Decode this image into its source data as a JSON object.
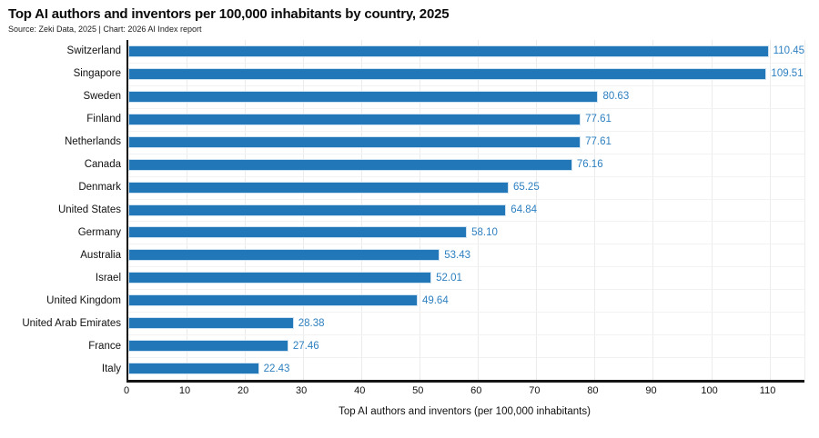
{
  "header": {
    "title": "Top AI authors and inventors per 100,000 inhabitants by country, 2025",
    "source": "Source: Zeki Data, 2025 | Chart: 2026 AI Index report"
  },
  "chart_data": {
    "type": "bar",
    "orientation": "horizontal",
    "title": "Top AI authors and inventors per 100,000 inhabitants by country, 2025",
    "subtitle": "Source: Zeki Data, 2025 | Chart: 2026 AI Index report",
    "categories": [
      "Switzerland",
      "Singapore",
      "Sweden",
      "Finland",
      "Netherlands",
      "Canada",
      "Denmark",
      "United States",
      "Germany",
      "Australia",
      "Israel",
      "United Kingdom",
      "United Arab Emirates",
      "France",
      "Italy"
    ],
    "values": [
      110.45,
      109.51,
      80.63,
      77.61,
      77.61,
      76.16,
      65.25,
      64.84,
      58.1,
      53.43,
      52.01,
      49.64,
      28.38,
      27.46,
      22.43
    ],
    "xlabel": "Top AI authors and inventors (per 100,000 inhabitants)",
    "ylabel": "",
    "xlim": [
      0,
      116
    ],
    "xticks": [
      0,
      10,
      20,
      30,
      40,
      50,
      60,
      70,
      80,
      90,
      100,
      110
    ],
    "grid": true,
    "legend": "none",
    "colors": {
      "bar": "#2177b8",
      "value_label": "#2e80c0",
      "grid_line": "#ececec",
      "axis_line": "#141414",
      "text": "#111111"
    }
  }
}
